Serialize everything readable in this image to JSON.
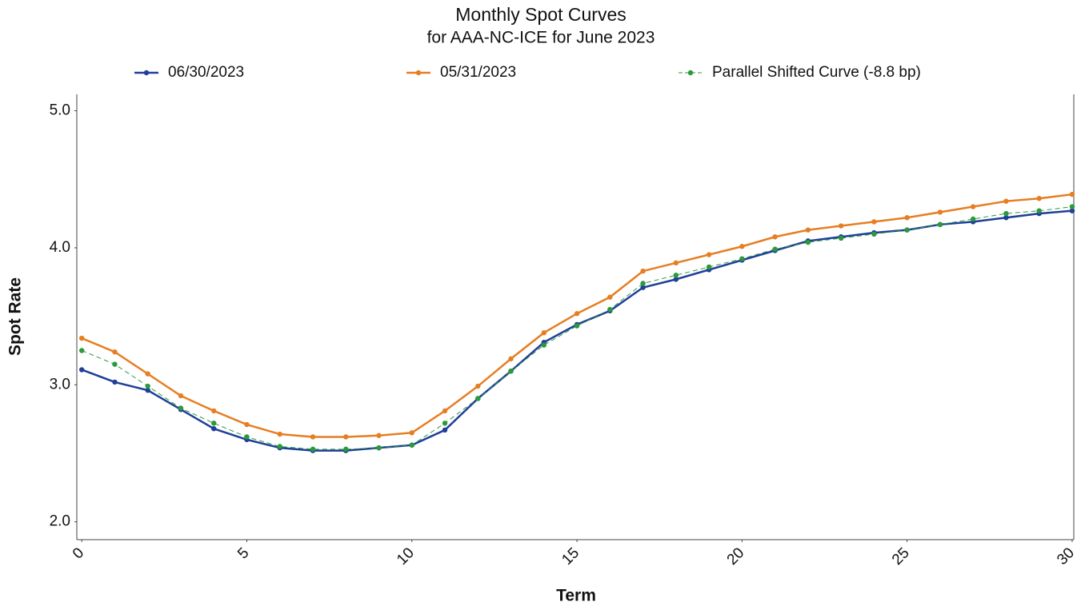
{
  "chart_data": {
    "type": "line",
    "title": "Monthly Spot Curves",
    "subtitle": "for AAA-NC-ICE for June 2023",
    "x_label": "Term",
    "y_label": "Spot Rate",
    "x": [
      0,
      1,
      2,
      3,
      4,
      5,
      6,
      7,
      8,
      9,
      10,
      11,
      12,
      13,
      14,
      15,
      16,
      17,
      18,
      19,
      20,
      21,
      22,
      23,
      24,
      25,
      26,
      27,
      28,
      29,
      30
    ],
    "series": [
      {
        "name": "06/30/2023",
        "color": "#1f3f99",
        "width": 2.5,
        "dashed": false,
        "values": [
          3.11,
          3.02,
          2.96,
          2.82,
          2.68,
          2.6,
          2.54,
          2.52,
          2.52,
          2.54,
          2.56,
          2.67,
          2.9,
          3.1,
          3.31,
          3.44,
          3.54,
          3.71,
          3.77,
          3.84,
          3.91,
          3.98,
          4.05,
          4.08,
          4.11,
          4.13,
          4.17,
          4.19,
          4.22,
          4.25,
          4.27
        ]
      },
      {
        "name": "05/31/2023",
        "color": "#e67e22",
        "width": 2.5,
        "dashed": false,
        "values": [
          3.34,
          3.24,
          3.08,
          2.92,
          2.81,
          2.71,
          2.64,
          2.62,
          2.62,
          2.63,
          2.65,
          2.81,
          2.99,
          3.19,
          3.38,
          3.52,
          3.64,
          3.83,
          3.89,
          3.95,
          4.01,
          4.08,
          4.13,
          4.16,
          4.19,
          4.22,
          4.26,
          4.3,
          4.34,
          4.36,
          4.39
        ]
      },
      {
        "name": "Parallel Shifted Curve (-8.8 bp)",
        "color": "#2a9a3a",
        "width": 1,
        "dashed": true,
        "values": [
          3.25,
          3.15,
          2.99,
          2.83,
          2.72,
          2.62,
          2.55,
          2.53,
          2.53,
          2.54,
          2.56,
          2.72,
          2.9,
          3.1,
          3.29,
          3.43,
          3.55,
          3.74,
          3.8,
          3.86,
          3.92,
          3.99,
          4.04,
          4.07,
          4.1,
          4.13,
          4.17,
          4.21,
          4.25,
          4.27,
          4.3
        ]
      }
    ],
    "xlim": [
      -0.15,
      30.05
    ],
    "xticks": [
      0,
      5,
      10,
      15,
      20,
      25,
      30
    ],
    "ylim": [
      1.87,
      5.12
    ],
    "yticks": [
      {
        "value": 2,
        "label": "2.0"
      },
      {
        "value": 3,
        "label": "3.0"
      },
      {
        "value": 4,
        "label": "4.0"
      },
      {
        "value": 5,
        "label": "5.0"
      }
    ],
    "grid": false,
    "legend": "top"
  }
}
